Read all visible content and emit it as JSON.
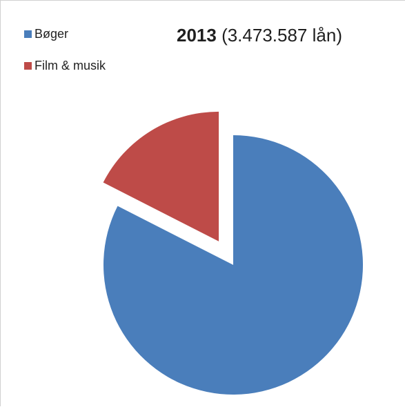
{
  "chart_data": {
    "type": "pie",
    "title_year": "2013",
    "title_suffix": " (3.473.587 lån)",
    "legend_position": "top-left",
    "slices": [
      {
        "label": "Bøger",
        "value": 82.5,
        "color": "#4a7ebb",
        "exploded": false
      },
      {
        "label": "Film & musik",
        "value": 17.5,
        "color": "#be4b48",
        "exploded": true
      }
    ]
  }
}
